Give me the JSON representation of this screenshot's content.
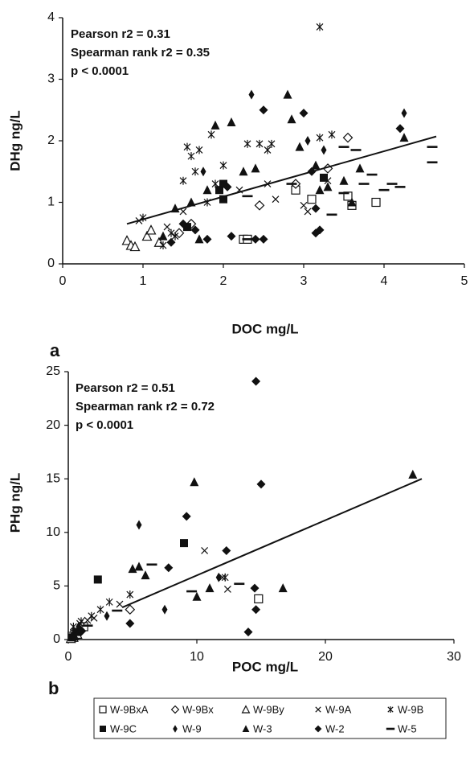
{
  "chart_data": [
    {
      "type": "scatter",
      "label": "a",
      "xlabel": "DOC mg/L",
      "ylabel": "DHg ng/L",
      "annotations": [
        "Pearson r2 = 0.31",
        "Spearman rank r2 = 0.35",
        "p < 0.0001"
      ],
      "xlim": [
        0,
        5
      ],
      "ylim": [
        0,
        4
      ],
      "xticks": [
        0,
        1,
        2,
        3,
        4,
        5
      ],
      "yticks": [
        0,
        1,
        2,
        3,
        4
      ],
      "trend_line": {
        "x": [
          0.8,
          4.65
        ],
        "y": [
          0.65,
          2.07
        ]
      },
      "series": [
        {
          "marker": "open-square",
          "x": [
            2.25,
            2.3,
            3.1,
            3.55,
            3.6,
            3.9,
            2.9
          ],
          "values": [
            0.4,
            0.4,
            1.05,
            1.1,
            0.95,
            1.0,
            1.2
          ]
        },
        {
          "marker": "open-diamond",
          "x": [
            1.6,
            1.45,
            2.45,
            3.3,
            3.55,
            2.9
          ],
          "values": [
            0.65,
            0.5,
            0.95,
            1.55,
            2.05,
            1.3
          ]
        },
        {
          "marker": "open-triangle",
          "x": [
            0.8,
            0.85,
            0.9,
            1.05,
            1.2,
            1.1
          ],
          "values": [
            0.38,
            0.3,
            0.28,
            0.45,
            0.35,
            0.55
          ]
        },
        {
          "marker": "cross",
          "x": [
            0.95,
            1.3,
            1.5,
            2.2,
            2.55,
            3.0,
            3.05,
            2.65,
            3.3
          ],
          "values": [
            0.7,
            0.6,
            0.85,
            1.2,
            1.3,
            0.95,
            0.85,
            1.05,
            1.35
          ]
        },
        {
          "marker": "asterisk",
          "x": [
            1.55,
            1.6,
            1.65,
            1.7,
            1.85,
            1.9,
            2.0,
            1.8,
            1.5,
            2.3,
            2.45,
            2.55,
            2.6,
            3.2,
            1.25,
            1.35,
            1.0,
            3.2,
            3.35,
            1.4
          ],
          "values": [
            1.9,
            1.75,
            1.5,
            1.85,
            2.1,
            1.3,
            1.6,
            1.0,
            1.35,
            1.95,
            1.95,
            1.85,
            1.95,
            3.85,
            0.3,
            0.5,
            0.75,
            2.05,
            2.1,
            0.45
          ]
        },
        {
          "marker": "filled-square",
          "x": [
            1.55,
            1.95,
            2.0,
            3.25,
            2.0
          ],
          "values": [
            0.6,
            1.2,
            1.3,
            1.4,
            1.05
          ]
        },
        {
          "marker": "small-diamond",
          "x": [
            2.35,
            3.05,
            4.25,
            3.25,
            1.75
          ],
          "values": [
            2.75,
            2.0,
            2.45,
            1.85,
            1.5
          ]
        },
        {
          "marker": "filled-triangle",
          "x": [
            1.25,
            1.4,
            1.7,
            1.8,
            1.9,
            2.1,
            2.25,
            2.4,
            2.8,
            2.85,
            3.15,
            3.3,
            3.5,
            3.6,
            4.25,
            3.7,
            1.6,
            2.95,
            3.2
          ],
          "values": [
            0.45,
            0.9,
            0.4,
            1.2,
            2.25,
            2.3,
            1.5,
            1.55,
            2.75,
            2.35,
            1.6,
            1.25,
            1.35,
            1.0,
            2.05,
            1.55,
            1.0,
            1.9,
            1.2
          ]
        },
        {
          "marker": "filled-diamond",
          "x": [
            1.5,
            1.65,
            1.8,
            2.1,
            2.4,
            2.5,
            2.5,
            3.0,
            3.15,
            3.2,
            3.15,
            4.2,
            1.35,
            2.05,
            3.1
          ],
          "values": [
            0.65,
            0.55,
            0.4,
            0.45,
            0.4,
            0.4,
            2.5,
            2.45,
            0.5,
            0.55,
            0.9,
            2.2,
            0.35,
            1.25,
            1.5
          ]
        },
        {
          "marker": "dash",
          "x": [
            2.3,
            2.3,
            3.5,
            3.65,
            3.5,
            3.75,
            4.0,
            4.1,
            3.85,
            4.2,
            4.6,
            4.6,
            2.85,
            3.35
          ],
          "values": [
            0.4,
            1.1,
            1.9,
            1.85,
            1.15,
            1.3,
            1.2,
            1.3,
            1.45,
            1.25,
            1.9,
            1.65,
            1.3,
            0.8
          ]
        }
      ]
    },
    {
      "type": "scatter",
      "label": "b",
      "xlabel": "POC mg/L",
      "ylabel": "PHg ng/L",
      "annotations": [
        "Pearson r2 = 0.51",
        "Spearman rank r2 = 0.72",
        "p < 0.0001"
      ],
      "xlim": [
        0,
        30
      ],
      "ylim": [
        0,
        25
      ],
      "xticks": [
        0,
        10,
        20,
        30
      ],
      "yticks": [
        0,
        5,
        10,
        15,
        20,
        25
      ],
      "trend_line": {
        "x": [
          4.2,
          27.5
        ],
        "y": [
          3,
          15
        ]
      },
      "series": [
        {
          "name": "W-9BxA",
          "marker": "open-square",
          "x": [
            0.5,
            1.2,
            14.8,
            0.3
          ],
          "values": [
            0.5,
            1.2,
            3.8,
            0.3
          ]
        },
        {
          "name": "W-9Bx",
          "marker": "open-diamond",
          "x": [
            4.8,
            1.0,
            0.6
          ],
          "values": [
            2.8,
            0.8,
            0.6
          ]
        },
        {
          "name": "W-9By",
          "marker": "open-triangle",
          "x": [
            0.4,
            0.2,
            0.7
          ],
          "values": [
            0.2,
            0.1,
            0.5
          ]
        },
        {
          "name": "W-9A",
          "marker": "cross",
          "x": [
            10.6,
            12.0,
            12.4,
            4.0,
            2.0,
            1.5,
            0.9
          ],
          "values": [
            8.3,
            5.8,
            4.7,
            3.3,
            2.0,
            1.8,
            1.5
          ]
        },
        {
          "name": "W-9B",
          "marker": "asterisk",
          "x": [
            4.8,
            12.2,
            2.5,
            3.2,
            1.8,
            1.0,
            0.4
          ],
          "values": [
            4.2,
            5.8,
            2.8,
            3.5,
            2.2,
            1.7,
            1.2
          ]
        },
        {
          "name": "W-9C",
          "marker": "filled-square",
          "x": [
            9.0,
            2.3,
            0.3,
            0.6
          ],
          "values": [
            9.0,
            5.6,
            0.2,
            0.7
          ]
        },
        {
          "name": "W-9",
          "marker": "small-diamond",
          "x": [
            11.7,
            5.5,
            7.5,
            0.8,
            3.0
          ],
          "values": [
            5.8,
            10.7,
            2.8,
            1.2,
            2.2
          ]
        },
        {
          "name": "W-3",
          "marker": "filled-triangle",
          "x": [
            9.8,
            5.0,
            5.5,
            6.0,
            10.0,
            11.0,
            16.7,
            26.8,
            0.5
          ],
          "values": [
            14.7,
            6.6,
            6.8,
            6.0,
            4.0,
            4.8,
            4.8,
            15.4,
            0.3
          ]
        },
        {
          "name": "W-2",
          "marker": "filled-diamond",
          "x": [
            14.6,
            15.0,
            9.2,
            7.8,
            12.3,
            14.5,
            14.6,
            14.0,
            4.8,
            1.0
          ],
          "values": [
            24.1,
            14.5,
            11.5,
            6.7,
            8.3,
            4.8,
            2.8,
            0.7,
            1.5,
            0.8
          ]
        },
        {
          "name": "W-5",
          "marker": "dash",
          "x": [
            3.8,
            6.5,
            9.6,
            13.3,
            1.5
          ],
          "values": [
            2.7,
            7.0,
            4.5,
            5.2,
            1.3
          ]
        }
      ]
    }
  ]
}
